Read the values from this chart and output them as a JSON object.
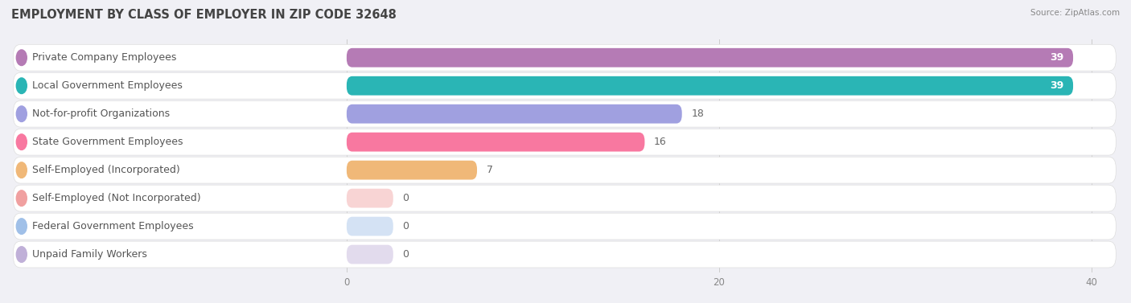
{
  "title": "EMPLOYMENT BY CLASS OF EMPLOYER IN ZIP CODE 32648",
  "source": "Source: ZipAtlas.com",
  "categories": [
    "Private Company Employees",
    "Local Government Employees",
    "Not-for-profit Organizations",
    "State Government Employees",
    "Self-Employed (Incorporated)",
    "Self-Employed (Not Incorporated)",
    "Federal Government Employees",
    "Unpaid Family Workers"
  ],
  "values": [
    39,
    39,
    18,
    16,
    7,
    0,
    0,
    0
  ],
  "bar_colors": [
    "#b57bb5",
    "#2ab5b5",
    "#a0a0e0",
    "#f878a0",
    "#f0b878",
    "#f0a0a0",
    "#a0c0e8",
    "#c0b0d8"
  ],
  "xlim_data": 40,
  "xticks": [
    0,
    20,
    40
  ],
  "background_color": "#f0f0f5",
  "row_bg_color": "#ffffff",
  "title_fontsize": 10.5,
  "label_fontsize": 9,
  "value_fontsize": 9
}
